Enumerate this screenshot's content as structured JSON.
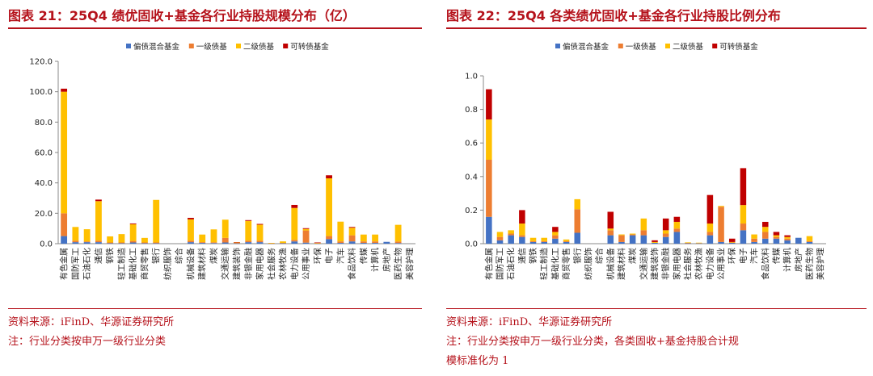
{
  "charts": [
    {
      "title": "图表 21：25Q4 绩优固收+基金各行业持股规模分布（亿）",
      "source": "资料来源：iFinD、华源证券研究所",
      "notes": [
        "注：行业分类按申万一级行业分类"
      ],
      "chart_data": {
        "type": "bar",
        "stacked": true,
        "categories": [
          "有色金属",
          "国防军工",
          "石油石化",
          "通信",
          "钢铁",
          "轻工制造",
          "基础化工",
          "商贸零售",
          "银行",
          "纺织服饰",
          "综合",
          "机械设备",
          "建筑材料",
          "煤炭",
          "交通运输",
          "建筑装饰",
          "非银金融",
          "家用电器",
          "社会服务",
          "农林牧渔",
          "电力设备",
          "公用事业",
          "环保",
          "电子",
          "汽车",
          "食品饮料",
          "传媒",
          "计算机",
          "房地产",
          "医药生物",
          "美容护理"
        ],
        "series": [
          {
            "name": "偏债混合基金",
            "color": "#4472c4",
            "values": [
              5,
              1,
              1,
              1,
              0.3,
              0.3,
              0.8,
              0.3,
              0.3,
              0,
              0,
              1,
              0.5,
              0.4,
              0.8,
              0.2,
              1,
              1,
              0.1,
              0.3,
              1.5,
              0.7,
              0.1,
              3,
              0.5,
              1.5,
              0.5,
              0.5,
              1.2,
              0.4,
              0
            ]
          },
          {
            "name": "一级债基",
            "color": "#ed7d31",
            "values": [
              15,
              1,
              0.5,
              1,
              0.5,
              0.5,
              1,
              0.5,
              0.5,
              0,
              0,
              1,
              0.5,
              0.5,
              3,
              0.3,
              1,
              1,
              0.1,
              0.2,
              1,
              8,
              0.2,
              2,
              1,
              4,
              1,
              1,
              0,
              1,
              0
            ]
          },
          {
            "name": "二级债基",
            "color": "#ffc000",
            "values": [
              80,
              9,
              8,
              26,
              4,
              5.5,
              11,
              3,
              28,
              0,
              0,
              14,
              5,
              8.5,
              12,
              0.3,
              13,
              10.5,
              0.3,
              1,
              21,
              1,
              0.2,
              38,
              13,
              5,
              4.5,
              4.5,
              0,
              11,
              0
            ]
          },
          {
            "name": "可转债基金",
            "color": "#c00000",
            "values": [
              2,
              0,
              0,
              1,
              0,
              0,
              0.5,
              0,
              0,
              0,
              0,
              1,
              0,
              0,
              0,
              0.2,
              0.5,
              0.5,
              0,
              0,
              2,
              0.5,
              0.3,
              2,
              0,
              0.5,
              0,
              0,
              0,
              0,
              0
            ]
          }
        ],
        "ylim": [
          0,
          120
        ],
        "yticks": [
          "0.0",
          "20.0",
          "40.0",
          "60.0",
          "80.0",
          "100.0",
          "120.0"
        ],
        "legend": "top"
      }
    },
    {
      "title": "图表 22：25Q4 各类绩优固收+基金各行业持股比例分布",
      "source": "资料来源：iFinD、华源证券研究所",
      "notes": [
        "注：行业分类按申万一级行业分类，各类固收+基金持股合计规",
        "模标准化为 1"
      ],
      "chart_data": {
        "type": "bar",
        "stacked": true,
        "categories": [
          "有色金属",
          "国防军工",
          "石油石化",
          "通信",
          "钢铁",
          "轻工制造",
          "基础化工",
          "商贸零售",
          "银行",
          "纺织服饰",
          "综合",
          "机械设备",
          "建筑材料",
          "煤炭",
          "交通运输",
          "建筑装饰",
          "非银金融",
          "家用电器",
          "社会服务",
          "农林牧渔",
          "电力设备",
          "公用事业",
          "环保",
          "电子",
          "汽车",
          "食品饮料",
          "传媒",
          "计算机",
          "房地产",
          "医药生物",
          "美容护理"
        ],
        "series": [
          {
            "name": "偏债混合基金",
            "color": "#4472c4",
            "values": [
              0.16,
              0.02,
              0.05,
              0.04,
              0.01,
              0.01,
              0.03,
              0.01,
              0.065,
              0,
              0,
              0.05,
              0.01,
              0.05,
              0.05,
              0.005,
              0.04,
              0.07,
              0.002,
              0.002,
              0.05,
              0.01,
              0.005,
              0.08,
              0.01,
              0.03,
              0.03,
              0.02,
              0.035,
              0.01,
              0
            ]
          },
          {
            "name": "一级债基",
            "color": "#ed7d31",
            "values": [
              0.34,
              0.02,
              0.01,
              0.01,
              0.005,
              0.005,
              0.02,
              0.005,
              0.14,
              0,
              0,
              0.03,
              0.04,
              0.005,
              0.03,
              0,
              0.02,
              0.02,
              0.003,
              0.002,
              0.02,
              0.21,
              0.002,
              0.04,
              0.02,
              0.04,
              0.01,
              0.01,
              0,
              0.005,
              0
            ]
          },
          {
            "name": "二级债基",
            "color": "#ffc000",
            "values": [
              0.24,
              0.03,
              0.02,
              0.07,
              0.02,
              0.02,
              0.02,
              0.01,
              0.06,
              0,
              0,
              0.01,
              0.005,
              0.005,
              0.07,
              0.005,
              0.02,
              0.04,
              0.003,
              0.002,
              0.05,
              0.005,
              0.003,
              0.11,
              0.025,
              0.03,
              0.01,
              0.01,
              0,
              0.03,
              0
            ]
          },
          {
            "name": "可转债基金",
            "color": "#c00000",
            "values": [
              0.18,
              0,
              0,
              0.08,
              0,
              0,
              0.03,
              0,
              0,
              0,
              0,
              0.1,
              0,
              0,
              0,
              0.01,
              0.07,
              0.03,
              0,
              0,
              0.17,
              0,
              0.02,
              0.22,
              0,
              0.03,
              0.02,
              0.01,
              0,
              0,
              0
            ]
          }
        ],
        "ylim": [
          0,
          1.0
        ],
        "yticks": [
          "0.0",
          "0.2",
          "0.4",
          "0.6",
          "0.8",
          "1.0"
        ],
        "legend": "top"
      }
    }
  ]
}
